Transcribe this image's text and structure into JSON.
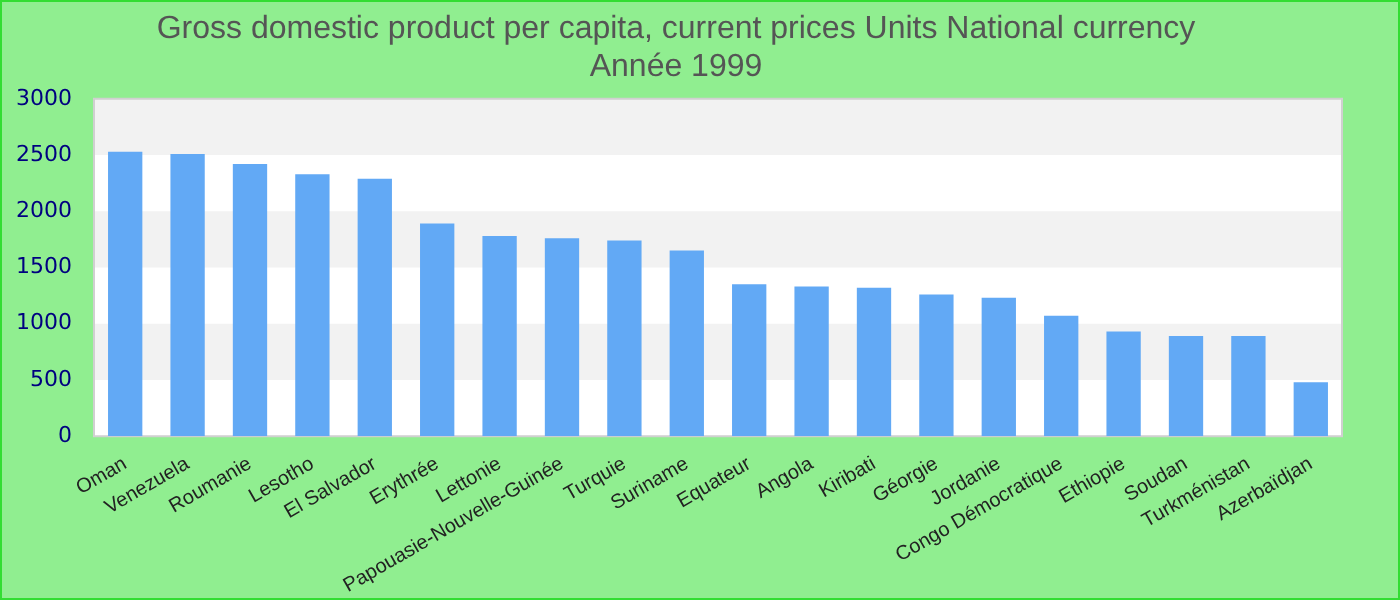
{
  "chart_data": {
    "type": "bar",
    "title": "Gross domestic product per capita, current prices Units National currency",
    "subtitle": "Année 1999",
    "categories": [
      "Oman",
      "Venezuela",
      "Roumanie",
      "Lesotho",
      "El Salvador",
      "Erythrée",
      "Lettonie",
      "Papouasie-Nouvelle-Guinée",
      "Turquie",
      "Suriname",
      "Equateur",
      "Angola",
      "Kiribati",
      "Géorgie",
      "Jordanie",
      "Congo Démocratique",
      "Ethiopie",
      "Soudan",
      "Turkménistan",
      "Azerbaïdjan"
    ],
    "values": [
      2530,
      2510,
      2420,
      2330,
      2290,
      1890,
      1780,
      1760,
      1740,
      1650,
      1350,
      1330,
      1320,
      1260,
      1230,
      1070,
      930,
      890,
      890,
      480
    ],
    "color": "#62a9f5",
    "ylim": [
      0,
      3000
    ],
    "yticks": [
      0,
      500,
      1000,
      1500,
      2000,
      2500,
      3000
    ]
  }
}
